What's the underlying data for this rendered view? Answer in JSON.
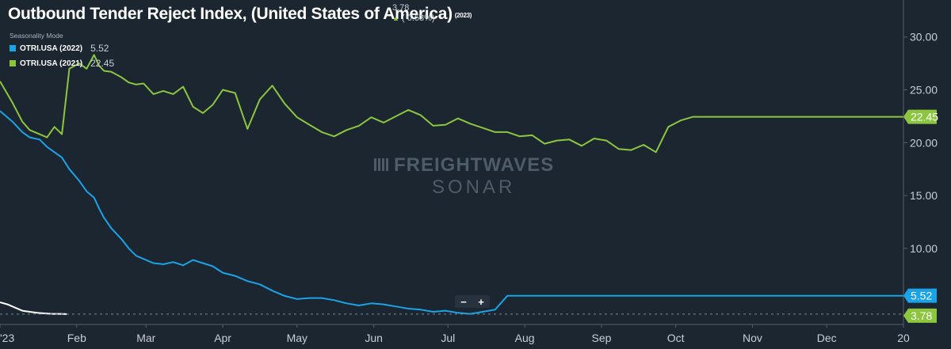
{
  "header": {
    "title": "Outbound Tender Reject Index, (United States of America)",
    "title_year": "(2023)",
    "current_value": "3.78",
    "current_change": "( 0.53%)",
    "seasonality_label": "Seasonality Mode"
  },
  "legend": [
    {
      "label": "OTRI.USA (2022)",
      "value": "5.52",
      "color": "#1ba3e8"
    },
    {
      "label": "OTRI.USA (2021)",
      "value": "22.45",
      "color": "#8cc63f"
    }
  ],
  "watermark": {
    "line1": "FREIGHTWAVES",
    "line2": "SONAR"
  },
  "zoom": {
    "minus": "−",
    "plus": "+"
  },
  "chart_data": {
    "type": "line",
    "ylim": [
      2.8,
      33.5
    ],
    "y_ticks": [
      "30.00",
      "25.00",
      "20.00",
      "15.00",
      "10.00"
    ],
    "x_ticks": [
      "'23",
      "Feb",
      "Mar",
      "Apr",
      "May",
      "Jun",
      "Jul",
      "Aug",
      "Sep",
      "Oct",
      "Nov",
      "Dec",
      "20"
    ],
    "last_value_labels": [
      "22.45",
      "5.52",
      "3.78"
    ],
    "series": [
      {
        "name": "OTRI.USA (2021)",
        "color": "#8cc63f",
        "x": [
          0,
          5,
          9,
          12,
          16,
          19,
          22,
          25,
          28,
          32,
          35,
          38,
          40,
          42,
          45,
          49,
          52,
          55,
          58,
          62,
          66,
          70,
          74,
          78,
          82,
          86,
          90,
          95,
          100,
          105,
          110,
          115,
          120,
          125,
          130,
          135,
          140,
          145,
          150,
          155,
          160,
          165,
          170,
          175,
          180,
          185,
          190,
          195,
          200,
          205,
          210,
          215,
          220,
          225,
          230,
          235,
          240,
          245,
          250,
          255,
          260,
          265,
          270,
          275,
          280,
          285,
          290,
          295,
          300,
          305,
          310,
          315,
          320,
          325,
          330,
          335,
          340,
          345,
          350,
          355,
          360,
          365
        ],
        "values": [
          25.8,
          23.8,
          22.0,
          21.2,
          20.8,
          20.5,
          21.5,
          20.8,
          27.0,
          27.5,
          27.0,
          28.3,
          27.3,
          26.8,
          26.7,
          26.2,
          25.7,
          25.5,
          25.6,
          24.6,
          24.9,
          24.6,
          25.3,
          23.4,
          22.8,
          23.6,
          25.0,
          24.7,
          21.3,
          24.1,
          25.4,
          23.7,
          22.4,
          21.7,
          21.0,
          20.6,
          21.2,
          21.6,
          22.4,
          21.9,
          22.5,
          23.1,
          22.6,
          21.6,
          21.7,
          22.3,
          21.8,
          21.4,
          21.0,
          21.0,
          20.6,
          20.7,
          19.9,
          20.2,
          20.3,
          19.7,
          20.4,
          20.2,
          19.4,
          19.3,
          19.8,
          19.1,
          21.5,
          22.1,
          22.45,
          22.45,
          22.45,
          22.45,
          22.45,
          22.45,
          22.45,
          22.45,
          22.45,
          22.45,
          22.45,
          22.45,
          22.45,
          22.45,
          22.45,
          22.45,
          22.45,
          22.45
        ]
      },
      {
        "name": "OTRI.USA (2022)",
        "color": "#1ba3e8",
        "x": [
          0,
          5,
          9,
          12,
          16,
          19,
          22,
          25,
          28,
          32,
          35,
          38,
          40,
          42,
          45,
          49,
          52,
          55,
          58,
          62,
          66,
          70,
          74,
          78,
          82,
          86,
          90,
          95,
          100,
          105,
          110,
          115,
          120,
          125,
          130,
          135,
          140,
          145,
          150,
          155,
          160,
          165,
          170,
          175,
          180,
          185,
          190,
          195,
          200,
          205,
          210,
          215,
          220,
          225,
          230,
          235,
          240,
          245,
          250,
          255,
          260,
          265,
          270,
          275,
          280,
          285,
          290,
          295,
          300,
          305,
          310,
          315,
          320,
          325,
          330,
          335,
          340,
          345,
          350,
          355,
          360,
          365
        ],
        "values": [
          23.0,
          22.0,
          21.0,
          20.5,
          20.3,
          19.6,
          19.1,
          18.6,
          17.5,
          16.4,
          15.4,
          14.8,
          13.8,
          12.9,
          11.9,
          10.9,
          10.0,
          9.3,
          9.0,
          8.6,
          8.5,
          8.7,
          8.4,
          8.9,
          8.6,
          8.3,
          7.7,
          7.4,
          6.9,
          6.6,
          6.0,
          5.5,
          5.2,
          5.3,
          5.3,
          5.1,
          4.8,
          4.6,
          4.8,
          4.7,
          4.5,
          4.3,
          4.2,
          4.0,
          4.1,
          3.9,
          3.8,
          4.0,
          4.2,
          5.52,
          5.52,
          5.52,
          5.52,
          5.52,
          5.52,
          5.52,
          5.52,
          5.52,
          5.52,
          5.52,
          5.52,
          5.52,
          5.52,
          5.52,
          5.52,
          5.52,
          5.52,
          5.52,
          5.52,
          5.52,
          5.52,
          5.52,
          5.52,
          5.52,
          5.52,
          5.52,
          5.52,
          5.52,
          5.52,
          5.52,
          5.52,
          5.52
        ]
      },
      {
        "name": "OTRI.USA (2023)",
        "color": "#ffffff",
        "x": [
          0,
          3,
          6,
          9,
          12,
          15,
          18,
          21,
          24,
          27
        ],
        "values": [
          4.9,
          4.7,
          4.4,
          4.1,
          4.0,
          3.9,
          3.85,
          3.8,
          3.8,
          3.78
        ]
      }
    ]
  }
}
